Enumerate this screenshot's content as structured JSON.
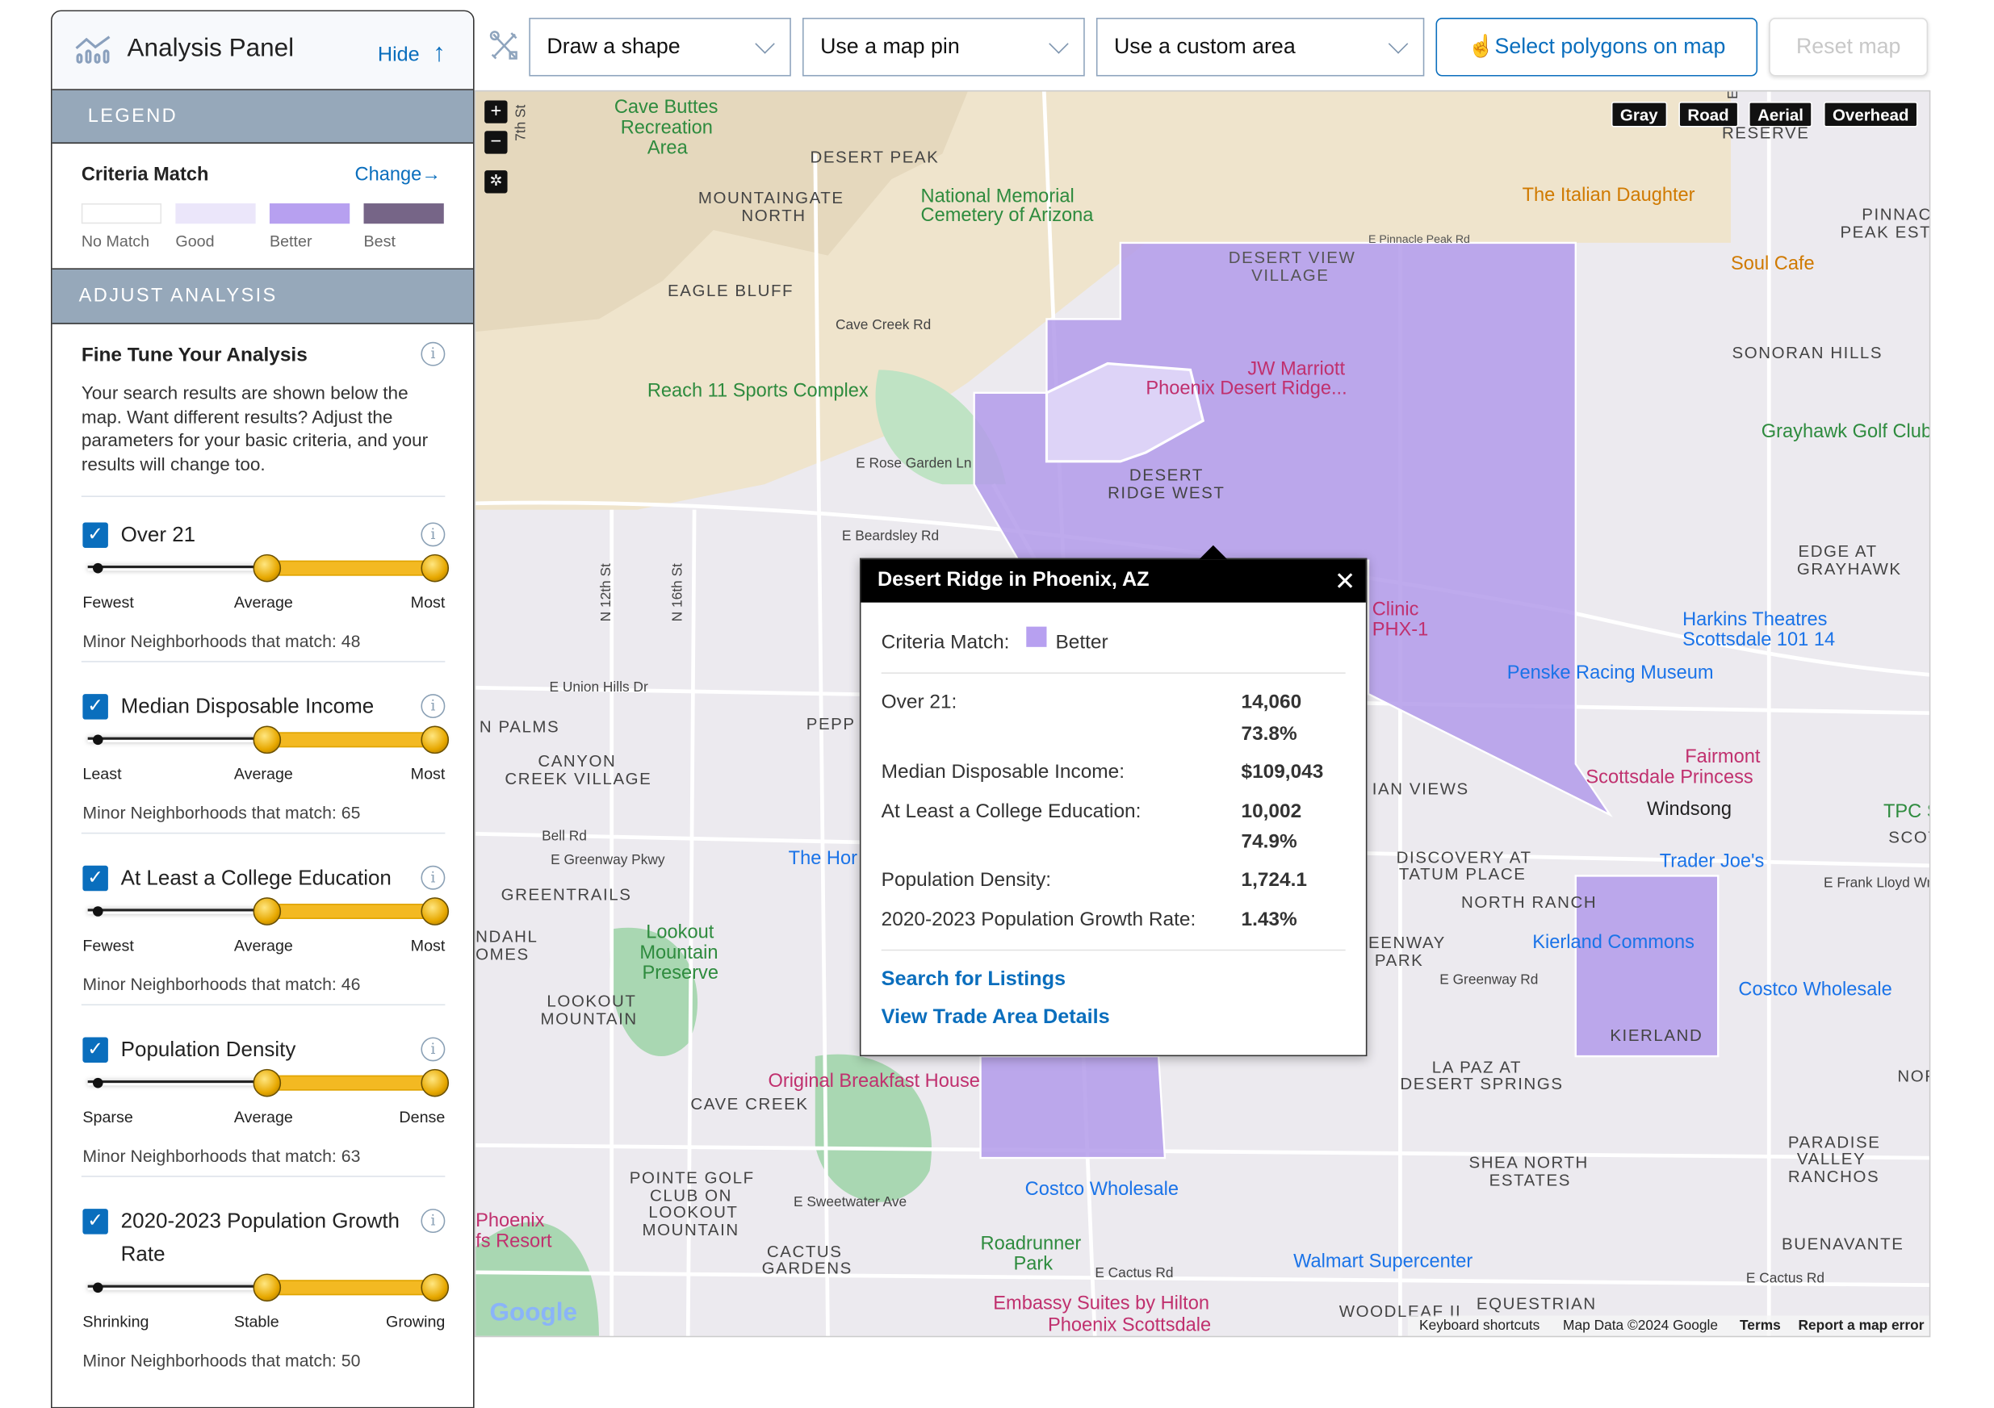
{
  "panel": {
    "title": "Analysis Panel",
    "hide_label": "Hide",
    "legend_header": "LEGEND",
    "criteria_match_label": "Criteria Match",
    "change_label": "Change",
    "legend_items": [
      {
        "label": "No Match",
        "color": "#ffffff"
      },
      {
        "label": "Good",
        "color": "#ebe6fa"
      },
      {
        "label": "Better",
        "color": "#b7a0f0"
      },
      {
        "label": "Best",
        "color": "#766587"
      }
    ],
    "adjust_header": "ADJUST ANALYSIS",
    "fine_tune_title": "Fine Tune Your Analysis",
    "fine_tune_text": "Your search results are shown below the map. Want different results? Adjust the parameters for your basic criteria, and your results will change too.",
    "criteria": [
      {
        "label": "Over 21",
        "checked": true,
        "min_label": "Fewest",
        "mid_label": "Average",
        "max_label": "Most",
        "range": [
          0.5,
          1.0
        ],
        "match_text": "Minor Neighborhoods that match: 48"
      },
      {
        "label": "Median Disposable Income",
        "checked": true,
        "min_label": "Least",
        "mid_label": "Average",
        "max_label": "Most",
        "range": [
          0.5,
          1.0
        ],
        "match_text": "Minor Neighborhoods that match: 65"
      },
      {
        "label": "At Least a College Education",
        "checked": true,
        "min_label": "Fewest",
        "mid_label": "Average",
        "max_label": "Most",
        "range": [
          0.5,
          1.0
        ],
        "match_text": "Minor Neighborhoods that match: 46"
      },
      {
        "label": "Population Density",
        "checked": true,
        "min_label": "Sparse",
        "mid_label": "Average",
        "max_label": "Dense",
        "range": [
          0.5,
          1.0
        ],
        "match_text": "Minor Neighborhoods that match: 63"
      },
      {
        "label": "2020-2023 Population Growth Rate",
        "checked": true,
        "min_label": "Shrinking",
        "mid_label": "Stable",
        "max_label": "Growing",
        "range": [
          0.5,
          1.0
        ],
        "match_text": "Minor Neighborhoods that match: 50"
      }
    ]
  },
  "toolbar": {
    "draw_shape": "Draw a shape",
    "map_pin": "Use a map pin",
    "custom_area": "Use a custom area",
    "select_polygons": "Select polygons on map",
    "reset_map": "Reset map"
  },
  "map": {
    "types": [
      "Gray",
      "Road",
      "Aerial",
      "Overhead"
    ],
    "labels": [
      "Cave Buttes",
      "Recreation",
      "Area",
      "DESERT PEAK",
      "MOUNTAINGATE",
      "NORTH",
      "National Memorial",
      "Cemetery of Arizona",
      "EAGLE BLUFF",
      "Reach 11 Sports Complex",
      "DESERT VIEW",
      "VILLAGE",
      "JW Marriott",
      "Phoenix Desert Ridge...",
      "DESERT",
      "RIDGE WEST",
      "The Italian Daughter",
      "Soul Cafe",
      "PINNACLE",
      "PEAK EST",
      "SONORAN HILLS",
      "Grayhawk Golf Club",
      "EDGE AT",
      "GRAYHAWK",
      "Harkins Theatres",
      "Scottsdale 101 14",
      "Penske Racing Museum",
      "Fairmont",
      "Scottsdale Princess",
      "Windsong",
      "Trader Joe's",
      "NORTH RANCH",
      "DISCOVERY AT",
      "TATUM PLACE",
      "Kierland Commons",
      "Costco Wholesale",
      "KIERLAND",
      "LA PAZ AT",
      "DESERT SPRINGS",
      "SHEA NORTH",
      "ESTATES",
      "PARADISE",
      "VALLEY",
      "RANCHOS",
      "BUENAVANTE",
      "CANYON",
      "CREEK VILLAGE",
      "GREENTRAILS",
      "Lookout",
      "Mountain",
      "Preserve",
      "LOOKOUT",
      "MOUNTAIN",
      "Original Breakfast House",
      "CAVE CREEK",
      "POINTE GOLF",
      "CLUB ON",
      "LOOKOUT",
      "MOUNTAIN",
      "CACTUS",
      "GARDENS",
      "Roadrunner",
      "Park",
      "Costco Wholesale",
      "Walmart Supercenter",
      "Embassy Suites by Hilton",
      "Phoenix Scottsdale",
      "WOODLEAF II",
      "EQUESTRIAN",
      "E Rose Garden Ln",
      "E Beardsley Rd",
      "E Union Hills Dr",
      "Bell Rd",
      "E Greenway Pkwy",
      "E Greenway Rd",
      "E Sweetwater Ave",
      "E Cactus Rd",
      "E Cactus Rd",
      "Cave Creek Rd",
      "N 12th St",
      "N 16th St",
      "7th St",
      "E Happy Valley Rd",
      "RESERVE",
      "E Frank Lloyd Wright",
      "Clinic",
      "PHX-1",
      "IAN VIEWS",
      "EENWAY",
      "PARK",
      "NDAHL",
      "OMES",
      "N PALMS",
      "The Hor",
      "PEPP",
      "Phoenix",
      "fs Resort",
      "TPC S",
      "SCOT",
      "NOF",
      "E Pinnacle Peak Rd"
    ],
    "google_logo": "Google",
    "keyboard_shortcuts": "Keyboard shortcuts",
    "map_data": "Map Data ©2024 Google",
    "terms": "Terms",
    "report": "Report a map error"
  },
  "popup": {
    "title": "Desert Ridge in Phoenix, AZ",
    "criteria_label": "Criteria Match:",
    "criteria_value": "Better",
    "criteria_color": "#b7a0f0",
    "rows": [
      {
        "label": "Over 21:",
        "value": "14,060",
        "value2": "73.8%"
      },
      {
        "label": "Median Disposable Income:",
        "value": "$109,043"
      },
      {
        "label": "At Least a College Education:",
        "value": "10,002",
        "value2": "74.9%"
      },
      {
        "label": "Population Density:",
        "value": "1,724.1"
      },
      {
        "label": "2020-2023 Population Growth Rate:",
        "value": "1.43%"
      }
    ],
    "search_link": "Search for Listings",
    "details_link": "View Trade Area Details"
  }
}
